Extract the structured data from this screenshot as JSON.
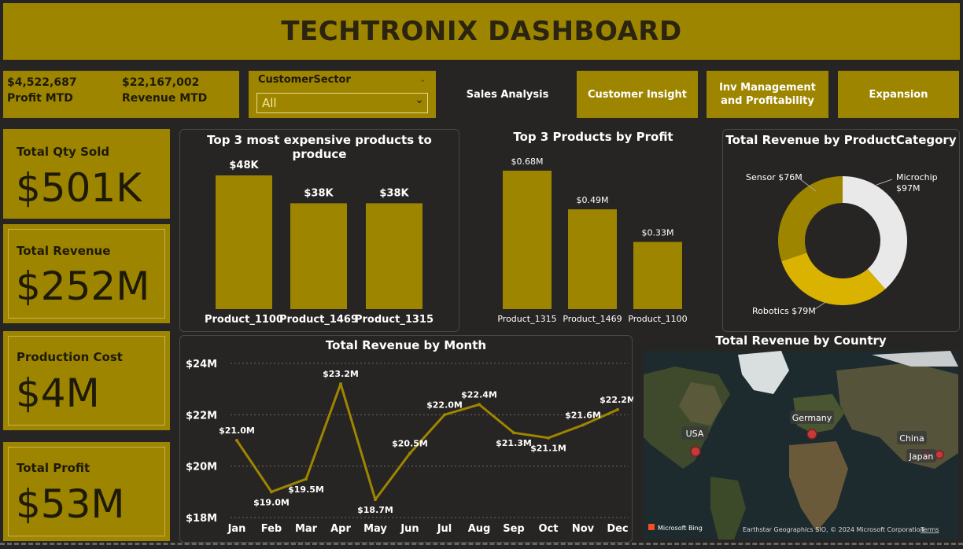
{
  "header": {
    "title": "TECHTRONIX DASHBOARD"
  },
  "mtd": {
    "profit_value": "$4,522,687",
    "profit_label": "Profit MTD",
    "revenue_value": "$22,167,002",
    "revenue_label": "Revenue MTD"
  },
  "slicer": {
    "label": "CustomerSector",
    "value": "All"
  },
  "nav": {
    "sales": "Sales Analysis",
    "customer": "Customer Insight",
    "inv": "Inv Management and Profitability",
    "expansion": "Expansion"
  },
  "cards": [
    {
      "label": "Total Qty Sold",
      "value": "$501K"
    },
    {
      "label": "Total Revenue",
      "value": "$252M"
    },
    {
      "label": "Production Cost",
      "value": "$4M"
    },
    {
      "label": "Total Profit",
      "value": "$53M"
    }
  ],
  "colors": {
    "gold": "#9e8500",
    "donut_yellow": "#d9b300",
    "donut_white": "#e9e9e9",
    "background": "#272523"
  },
  "map": {
    "title": "Total Revenue by Country",
    "labels": [
      "USA",
      "Germany",
      "China",
      "Japan"
    ],
    "bing": "Microsoft Bing",
    "credit": "Earthstar Geographics SIO, © 2024 Microsoft Corporation",
    "terms": "Terms"
  },
  "chart_data": [
    {
      "type": "bar",
      "title": "Top 3 most expensive products to produce",
      "categories": [
        "Product_1100",
        "Product_1469",
        "Product_1315"
      ],
      "values": [
        48,
        38,
        38
      ],
      "data_labels": [
        "$48K",
        "$38K",
        "$38K"
      ],
      "unit": "K"
    },
    {
      "type": "bar",
      "title": "Top 3 Products by Profit",
      "categories": [
        "Product_1315",
        "Product_1469",
        "Product_1100"
      ],
      "values": [
        0.68,
        0.49,
        0.33
      ],
      "data_labels": [
        "$0.68M",
        "$0.49M",
        "$0.33M"
      ],
      "unit": "M"
    },
    {
      "type": "pie",
      "title": "Total Revenue by ProductCategory",
      "categories": [
        "Microchip",
        "Robotics",
        "Sensor"
      ],
      "values": [
        97,
        79,
        76
      ],
      "labels": [
        "Microchip $97M",
        "Robotics $79M",
        "Sensor $76M"
      ]
    },
    {
      "type": "line",
      "title": "Total Revenue by Month",
      "categories": [
        "Jan",
        "Feb",
        "Mar",
        "Apr",
        "May",
        "Jun",
        "Jul",
        "Aug",
        "Sep",
        "Oct",
        "Nov",
        "Dec"
      ],
      "values": [
        21.0,
        19.0,
        19.5,
        23.2,
        18.7,
        20.5,
        22.0,
        22.4,
        21.3,
        21.1,
        21.6,
        22.2
      ],
      "data_labels": [
        "$21.0M",
        "$19.0M",
        "$19.5M",
        "$23.2M",
        "$18.7M",
        "$20.5M",
        "$22.0M",
        "$22.4M",
        "$21.3M",
        "$21.1M",
        "$21.6M",
        "$22.2M"
      ],
      "y_ticks": [
        "$18M",
        "$20M",
        "$22M",
        "$24M"
      ],
      "ylim": [
        18,
        24
      ],
      "grid": true
    }
  ]
}
